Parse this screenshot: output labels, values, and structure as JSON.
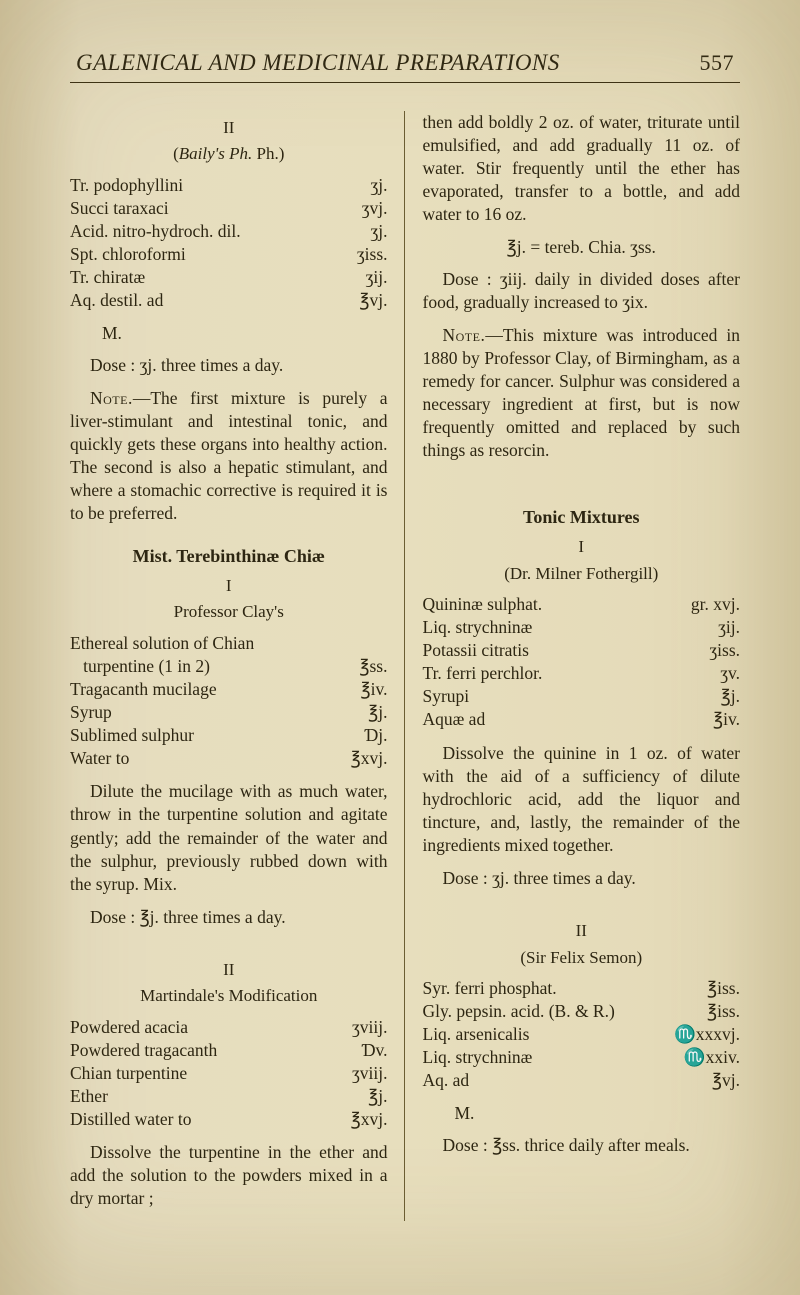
{
  "page": {
    "running_head_title": "GALENICAL AND MEDICINAL PREPARATIONS",
    "page_number": "557"
  },
  "left": {
    "sub_roman": "II",
    "sub_paren_pre": "(",
    "sub_paren_ital": "Baily's Ph.",
    "sub_paren_post": " Ph.)",
    "recipe1": [
      {
        "ing": "Tr. podophyllini",
        "amt": "ʒj."
      },
      {
        "ing": "Succi taraxaci",
        "amt": "ʒvj."
      },
      {
        "ing": "Acid. nitro-hydroch. dil.",
        "amt": "ʒj."
      },
      {
        "ing": "Spt. chloroformi",
        "amt": "ʒiss."
      },
      {
        "ing": "Tr. chiratæ",
        "amt": "ʒij."
      },
      {
        "ing": "Aq. destil. ad",
        "amt": "℥vj."
      }
    ],
    "m1": "M.",
    "dose1": "Dose : ʒj. three times a day.",
    "note1_label": "Note.",
    "note1_body": "—The first mixture is purely a liver-stimulant and intestinal tonic, and quickly gets these organs into healthy action. The second is also a hepatic stimulant, and where a stomachic corrective is required it is to be preferred.",
    "sec1_title": "Mist. Terebinthinæ Chiæ",
    "sec1_roman": "I",
    "sec1_sub": "Professor Clay's",
    "recipe2": [
      {
        "ing": "Ethereal solution of Chian",
        "amt": ""
      },
      {
        "ing": "   turpentine (1 in 2)",
        "amt": "℥ss."
      },
      {
        "ing": "Tragacanth mucilage",
        "amt": "℥iv."
      },
      {
        "ing": "Syrup",
        "amt": "℥j."
      },
      {
        "ing": "Sublimed sulphur",
        "amt": "Ɗj."
      },
      {
        "ing": "Water to",
        "amt": "℥xvj."
      }
    ],
    "para2": "Dilute the mucilage with as much water, throw in the turpentine solution and agitate gently; add the remainder of the water and the sulphur, previously rubbed down with the syrup. Mix.",
    "dose2": "Dose : ℥j. three times a day.",
    "sec2_roman": "II",
    "sec2_sub": "Martindale's Modification",
    "recipe3": [
      {
        "ing": "Powdered acacia",
        "amt": "ʒviij."
      },
      {
        "ing": "Powdered tragacanth",
        "amt": "Ɗv."
      },
      {
        "ing": "Chian turpentine",
        "amt": "ʒviij."
      },
      {
        "ing": "Ether",
        "amt": "℥j."
      },
      {
        "ing": "Distilled water to",
        "amt": "℥xvj."
      }
    ],
    "para3": "Dissolve the turpentine in the ether and add the solution to the powders mixed in a dry mortar ;"
  },
  "right": {
    "para1": "then add boldly 2 oz. of water, triturate until emulsified, and add gradually 11 oz. of water. Stir frequently until the ether has evaporated, transfer to a bottle, and add water to 16 oz.",
    "eq1": "℥j. = tereb. Chia. ʒss.",
    "dose1": "Dose : ʒiij. daily in divided doses after food, gradually increased to ʒix.",
    "note1_label": "Note.",
    "note1_body": "—This mixture was introduced in 1880 by Professor Clay, of Birmingham, as a remedy for cancer. Sulphur was considered a necessary ingredient at first, but is now frequently omitted and replaced by such things as resorcin.",
    "sec_title": "Tonic Mixtures",
    "sec_roman": "I",
    "sec_sub": "(Dr. Milner Fothergill)",
    "recipe1": [
      {
        "ing": "Quininæ sulphat.",
        "amt": "gr. xvj."
      },
      {
        "ing": "Liq. strychninæ",
        "amt": "ʒij."
      },
      {
        "ing": "Potassii citratis",
        "amt": "ʒiss."
      },
      {
        "ing": "Tr. ferri perchlor.",
        "amt": "ʒv."
      },
      {
        "ing": "Syrupi",
        "amt": "℥j."
      },
      {
        "ing": "Aquæ ad",
        "amt": "℥iv."
      }
    ],
    "para2": "Dissolve the quinine in 1 oz. of water with the aid of a sufficiency of dilute hydrochloric acid, add the liquor and tincture, and, lastly, the remainder of the ingredients mixed together.",
    "dose2": "Dose : ʒj. three times a day.",
    "sec2_roman": "II",
    "sec2_sub": "(Sir Felix Semon)",
    "recipe2": [
      {
        "ing": "Syr. ferri phosphat.",
        "amt": "℥iss."
      },
      {
        "ing": "Gly. pepsin. acid. (B. & R.)",
        "amt": "℥iss."
      },
      {
        "ing": "Liq. arsenicalis",
        "amt": "♏xxxvj."
      },
      {
        "ing": "Liq. strychninæ",
        "amt": "♏xxiv."
      },
      {
        "ing": "Aq. ad",
        "amt": "℥vj."
      }
    ],
    "m2": "M.",
    "dose3": "Dose : ℥ss. thrice daily after meals."
  }
}
